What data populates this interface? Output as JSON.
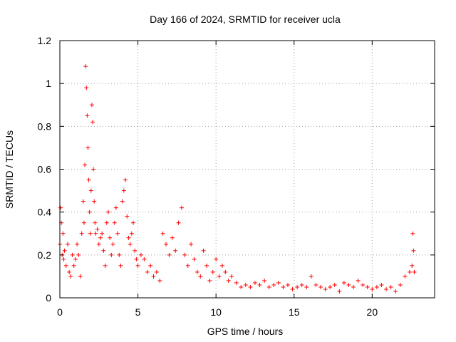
{
  "chart_data": {
    "type": "scatter",
    "title": "Day 166 of 2024, SRMTID for receiver ucla",
    "xlabel": "GPS time / hours",
    "ylabel": "SRMTID / TECUs",
    "xlim": [
      0,
      24
    ],
    "ylim": [
      0,
      1.2
    ],
    "xticks": [
      0,
      5,
      10,
      15,
      20
    ],
    "yticks": [
      0,
      0.2,
      0.4,
      0.6,
      0.8,
      1,
      1.2
    ],
    "ytick_labels": [
      "0",
      "0.2",
      "0.4",
      "0.6",
      "0.8",
      "1",
      "1.2"
    ],
    "grid": true,
    "marker": "+",
    "color": "#ff0000",
    "series": [
      {
        "name": "SRMTID",
        "x": [
          0.0,
          0.05,
          0.1,
          0.15,
          0.2,
          0.25,
          0.3,
          0.4,
          0.5,
          0.6,
          0.7,
          0.8,
          0.9,
          1.0,
          1.1,
          1.2,
          1.3,
          1.4,
          1.5,
          1.55,
          1.6,
          1.65,
          1.7,
          1.75,
          1.8,
          1.85,
          1.9,
          1.95,
          2.0,
          2.05,
          2.1,
          2.15,
          2.2,
          2.25,
          2.3,
          2.4,
          2.5,
          2.6,
          2.7,
          2.8,
          2.9,
          3.0,
          3.1,
          3.2,
          3.3,
          3.4,
          3.5,
          3.6,
          3.7,
          3.8,
          3.9,
          4.0,
          4.1,
          4.2,
          4.3,
          4.4,
          4.5,
          4.6,
          4.7,
          4.8,
          4.9,
          5.0,
          5.2,
          5.4,
          5.6,
          5.8,
          6.0,
          6.2,
          6.4,
          6.6,
          6.8,
          7.0,
          7.2,
          7.4,
          7.6,
          7.8,
          8.0,
          8.2,
          8.4,
          8.6,
          8.8,
          9.0,
          9.2,
          9.4,
          9.6,
          9.8,
          10.0,
          10.2,
          10.4,
          10.6,
          10.8,
          11.0,
          11.3,
          11.6,
          11.9,
          12.2,
          12.5,
          12.8,
          13.1,
          13.4,
          13.7,
          14.0,
          14.3,
          14.6,
          14.9,
          15.2,
          15.5,
          15.8,
          16.1,
          16.4,
          16.7,
          17.0,
          17.3,
          17.6,
          17.9,
          18.2,
          18.5,
          18.8,
          19.1,
          19.4,
          19.7,
          20.0,
          20.3,
          20.6,
          20.9,
          21.2,
          21.5,
          21.8,
          22.1,
          22.4,
          22.55,
          22.6,
          22.65,
          22.7
        ],
        "y": [
          0.25,
          0.42,
          0.35,
          0.2,
          0.3,
          0.18,
          0.22,
          0.15,
          0.25,
          0.12,
          0.1,
          0.2,
          0.15,
          0.18,
          0.25,
          0.2,
          0.1,
          0.3,
          0.45,
          0.35,
          0.62,
          1.08,
          0.98,
          0.85,
          0.7,
          0.55,
          0.4,
          0.3,
          0.5,
          0.9,
          0.82,
          0.6,
          0.45,
          0.35,
          0.3,
          0.32,
          0.25,
          0.28,
          0.3,
          0.22,
          0.15,
          0.35,
          0.4,
          0.28,
          0.2,
          0.25,
          0.35,
          0.42,
          0.3,
          0.2,
          0.15,
          0.45,
          0.5,
          0.55,
          0.38,
          0.28,
          0.25,
          0.3,
          0.35,
          0.22,
          0.18,
          0.15,
          0.2,
          0.18,
          0.12,
          0.15,
          0.1,
          0.12,
          0.08,
          0.3,
          0.25,
          0.2,
          0.28,
          0.22,
          0.35,
          0.42,
          0.2,
          0.15,
          0.25,
          0.18,
          0.12,
          0.1,
          0.22,
          0.15,
          0.08,
          0.12,
          0.18,
          0.1,
          0.15,
          0.12,
          0.08,
          0.1,
          0.07,
          0.05,
          0.06,
          0.05,
          0.07,
          0.06,
          0.08,
          0.05,
          0.06,
          0.07,
          0.05,
          0.06,
          0.04,
          0.05,
          0.06,
          0.05,
          0.1,
          0.06,
          0.05,
          0.04,
          0.05,
          0.06,
          0.03,
          0.07,
          0.06,
          0.05,
          0.08,
          0.06,
          0.05,
          0.04,
          0.05,
          0.06,
          0.04,
          0.05,
          0.03,
          0.06,
          0.1,
          0.12,
          0.15,
          0.3,
          0.22,
          0.12
        ]
      }
    ]
  }
}
